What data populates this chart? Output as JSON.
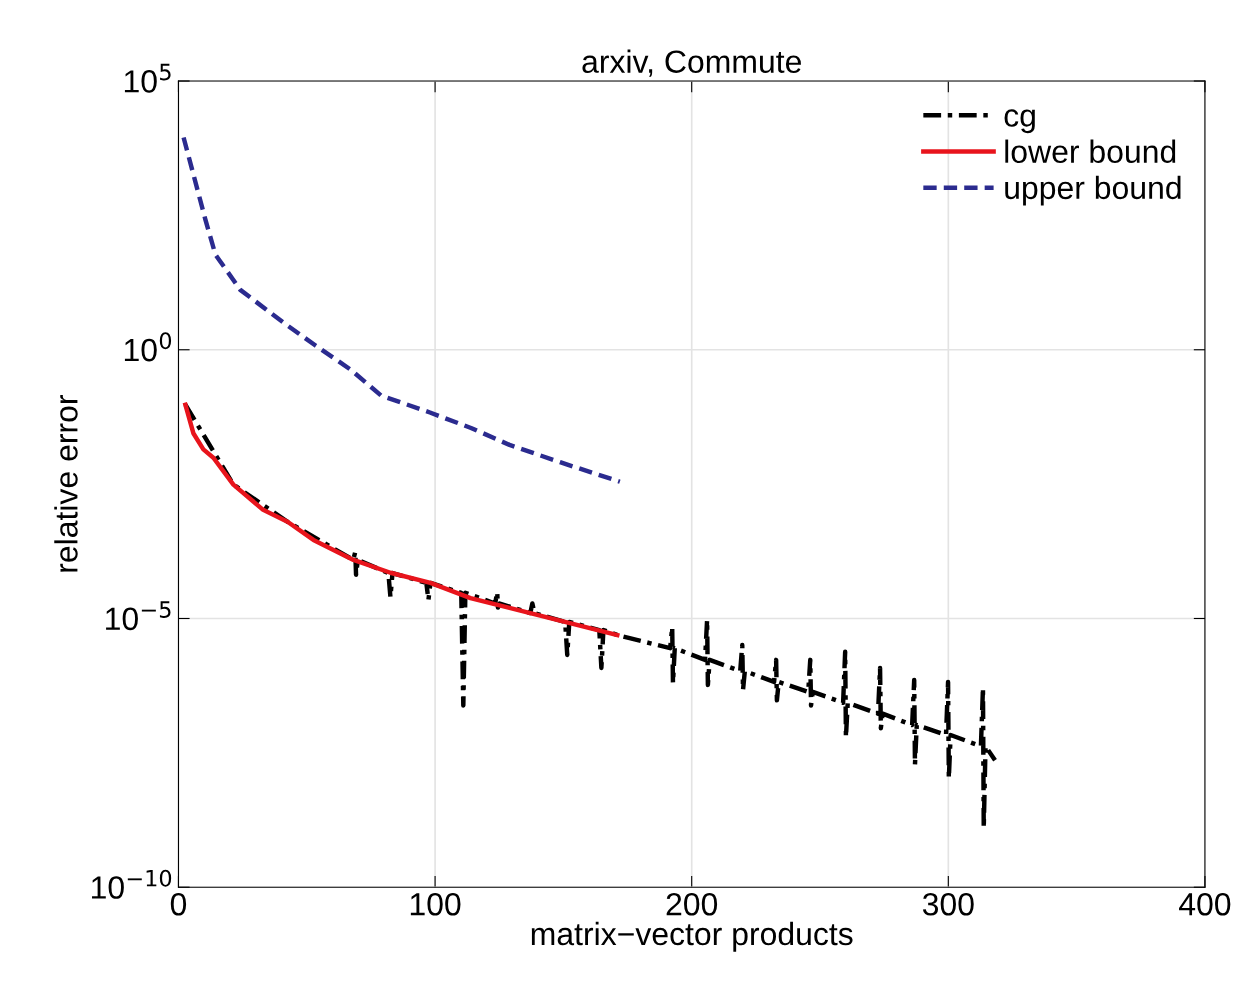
{
  "chart_data": {
    "type": "line",
    "title": "arxiv, Commute",
    "xlabel": "matrix−vector products",
    "ylabel": "relative error",
    "log": "y",
    "grid": true,
    "legend": "top right",
    "xlim": [
      0,
      400
    ],
    "xticks": [
      0,
      100,
      200,
      300,
      400
    ],
    "ylim": [
      1e-10,
      100000.0
    ],
    "yticks": [
      {
        "value": 1e-10,
        "label": "10$^{−10}$"
      },
      {
        "value": 1e-05,
        "label": "10$^{−5}$"
      },
      {
        "value": 1,
        "label": "10$^{0}$"
      },
      {
        "value": 100000.0,
        "label": "10$^{5}$"
      }
    ],
    "series": [
      {
        "name": "cg",
        "color": "#000000",
        "line_style": "dashdot",
        "x": [
          2.7,
          21.4,
          42.5,
          68.1,
          68.9,
          69.2,
          69.9,
          81.8,
          82.6,
          83.4,
          96.6,
          97.4,
          98.2,
          110.2,
          111.0,
          111.8,
          123.4,
          124.2,
          124.5,
          125.2,
          137.1,
          137.9,
          138.7,
          150.7,
          151.5,
          152.3,
          164.0,
          164.8,
          165.6,
          171.1,
          191.6,
          192.4,
          192.7,
          193.4,
          205.2,
          206.0,
          206.3,
          207.0,
          218.9,
          219.7,
          220.0,
          220.7,
          232.1,
          232.9,
          233.2,
          233.9,
          245.4,
          246.2,
          246.5,
          247.2,
          259.0,
          259.8,
          260.1,
          260.8,
          272.6,
          273.4,
          273.7,
          274.4,
          285.9,
          286.7,
          287.0,
          287.7,
          299.1,
          299.9,
          300.2,
          300.9,
          312.7,
          313.5,
          313.8,
          314.5,
          318.2
        ],
        "values": [
          0.095,
          0.0031,
          0.00063,
          0.000123,
          0.000173,
          6.5e-05,
          0.000123,
          7e-05,
          2.5e-05,
          7e-05,
          4.6e-05,
          2.2e-05,
          4.6e-05,
          3e-05,
          2.4e-07,
          3e-05,
          1.9e-05,
          3.1e-05,
          1.6e-05,
          1.9e-05,
          1.26e-05,
          1.9e-05,
          1.26e-05,
          8.6e-06,
          2.1e-06,
          8.6e-06,
          6.1e-06,
          1.2e-06,
          6.1e-06,
          4.9e-06,
          2.8e-06,
          6.9e-06,
          6.3e-07,
          2.8e-06,
          1.7e-06,
          9.4e-06,
          5.8e-07,
          1.7e-06,
          1.05e-06,
          3.2e-06,
          4.7e-07,
          1.05e-06,
          6.6e-07,
          1.7e-06,
          3e-07,
          6.6e-07,
          4.3e-07,
          1.7e-06,
          2.4e-07,
          4.3e-07,
          2.7e-07,
          2.4e-06,
          6.2e-08,
          2.7e-07,
          1.7e-07,
          1.2e-06,
          9.1e-08,
          1.7e-07,
          1.04e-07,
          7.2e-07,
          1.9e-08,
          1.04e-07,
          6.8e-08,
          6.6e-07,
          1.07e-08,
          6.8e-08,
          4.2e-08,
          5.1e-07,
          1.26e-09,
          4.2e-08,
          2.3e-08
        ]
      },
      {
        "name": "lower bound",
        "color": "#e8141c",
        "line_style": "solid",
        "x": [
          2.7,
          5.8,
          9.7,
          13.6,
          21.4,
          33,
          42.5,
          52.6,
          68.2,
          82.6,
          98.2,
          113.8,
          139.8,
          171
        ],
        "values": [
          0.095,
          0.028,
          0.014,
          0.0098,
          0.0031,
          0.00105,
          0.00063,
          0.00029,
          0.000123,
          7.1e-05,
          4.6e-05,
          2.4e-05,
          1.17e-05,
          4.9e-06
        ]
      },
      {
        "name": "upper bound",
        "color": "#2b2b8f",
        "line_style": "dashed",
        "x": [
          2,
          10.5,
          14.4,
          24.1,
          41.7,
          53.4,
          67,
          79,
          98,
          114,
          129,
          149,
          172
        ],
        "values": [
          8900,
          263,
          59,
          13,
          3,
          1.2,
          0.43,
          0.14,
          0.068,
          0.035,
          0.017,
          0.008,
          0.0035
        ]
      }
    ]
  }
}
